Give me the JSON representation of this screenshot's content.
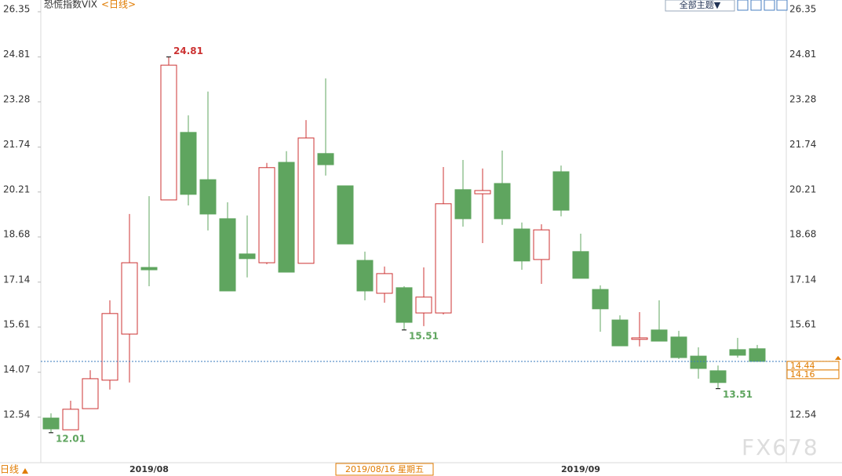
{
  "chart_data": {
    "type": "candlestick",
    "title": "恐慌指数VIX",
    "subtitle": "<日线>",
    "toolbar_label": "全部主题▼",
    "period_label": "日线",
    "watermark": "FX678",
    "categories": [
      null,
      null,
      null,
      null,
      null,
      "2019/08",
      null,
      null,
      null,
      null,
      null,
      null,
      null,
      null,
      null,
      null,
      null,
      null,
      null,
      null,
      null,
      null,
      null,
      null,
      null,
      null,
      null,
      "2019/09",
      null,
      null,
      null,
      null,
      null,
      null,
      null,
      null,
      null
    ],
    "open": [
      12.51,
      12.11,
      12.83,
      13.8,
      15.37,
      17.64,
      19.94,
      22.24,
      20.63,
      19.3,
      18.1,
      17.8,
      21.22,
      17.78,
      21.52,
      20.42,
      17.88,
      16.76,
      16.95,
      16.09,
      16.09,
      20.29,
      20.15,
      20.5,
      18.95,
      17.91,
      20.9,
      18.18,
      16.89,
      15.85,
      15.19,
      15.51,
      15.27,
      14.62,
      14.12,
      14.84,
      14.87
    ],
    "high": [
      12.67,
      13.1,
      14.14,
      16.52,
      19.46,
      20.07,
      24.81,
      22.82,
      23.63,
      19.86,
      19.41,
      21.2,
      21.6,
      22.66,
      24.08,
      20.42,
      18.18,
      17.67,
      17.0,
      17.64,
      21.06,
      21.3,
      21.01,
      21.62,
      19.17,
      19.11,
      21.11,
      18.79,
      17.03,
      16.01,
      16.12,
      16.52,
      15.48,
      14.92,
      14.3,
      15.24,
      15.0
    ],
    "low": [
      12.01,
      12.11,
      12.83,
      13.48,
      13.72,
      17.0,
      19.94,
      19.75,
      18.9,
      16.84,
      17.3,
      17.75,
      17.48,
      17.78,
      20.77,
      18.44,
      16.52,
      16.44,
      15.51,
      15.64,
      16.04,
      19.03,
      18.47,
      19.09,
      17.56,
      17.08,
      19.38,
      17.27,
      15.45,
      14.97,
      14.95,
      15.13,
      14.52,
      13.85,
      13.51,
      14.57,
      14.44
    ],
    "close": [
      12.14,
      12.81,
      13.85,
      16.07,
      17.8,
      17.56,
      24.53,
      20.13,
      19.46,
      16.84,
      17.94,
      21.04,
      17.48,
      22.05,
      21.14,
      18.44,
      16.84,
      17.43,
      15.77,
      16.63,
      19.81,
      19.3,
      20.26,
      19.3,
      17.86,
      18.92,
      19.59,
      17.27,
      16.23,
      14.97,
      15.24,
      15.13,
      14.57,
      14.2,
      13.72,
      14.65,
      14.44
    ],
    "up_color": "#cc3333",
    "down_color": "#5fa55f",
    "ylim": [
      10.99,
      26.75
    ],
    "yticks": [
      12.54,
      14.07,
      15.61,
      17.14,
      18.68,
      20.21,
      21.74,
      23.28,
      24.81,
      26.35
    ],
    "annotations": [
      {
        "x": 6,
        "y": 24.81
      },
      {
        "x": 18,
        "y": 15.51
      },
      {
        "x": 0,
        "y": 12.01
      },
      {
        "x": 34,
        "y": 13.51
      }
    ],
    "cursor": {
      "x": 17,
      "label": "2019/08/16 星期五",
      "value": 14.16
    }
  }
}
